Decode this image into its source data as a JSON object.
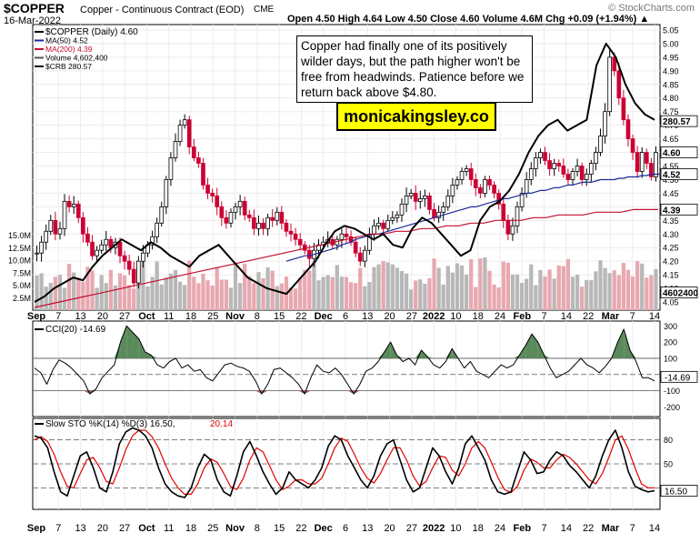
{
  "header": {
    "ticker": "$COPPER",
    "contract": "Copper - Continuous Contract (EOD)",
    "exchange": "CME",
    "date": "16-Mar-2022",
    "ohlc": "Open 4.50  High 4.64  Low 4.50  Close 4.60  Volume 4.6M  Chg +0.09 (+1.94%) ▲",
    "watermark": "© StockCharts.com"
  },
  "legend": {
    "main": "$COPPER (Daily) 4.60",
    "ma50": "MA(50) 4.52",
    "ma200": "MA(200) 4.39",
    "volume": "Volume 4,602,400",
    "crb": "$CRB 280.57"
  },
  "annotation": {
    "text": "Copper had finally one of its positively wilder days, but the path higher won't be free from headwinds. Patience before we return back above $4.80.",
    "site": "monicakingsley.co"
  },
  "colors": {
    "up": "#000000",
    "down": "#cc0033",
    "ma50": "#1a2a9a",
    "ma200": "#c01030",
    "crb": "#000000",
    "vol_up": "#b8b8b8",
    "vol_down": "#e8a8b0",
    "cci_up": "#5a8a5a",
    "cci_down": "#a06060",
    "sto_k": "#000000",
    "sto_d": "#e00000"
  },
  "chart_data": [
    {
      "type": "candlestick",
      "title": "$COPPER (Daily)",
      "x_labels": [
        "Sep",
        "7",
        "13",
        "20",
        "27",
        "Oct",
        "11",
        "18",
        "25",
        "Nov",
        "8",
        "15",
        "22",
        "Dec",
        "6",
        "13",
        "20",
        "27",
        "2022",
        "10",
        "18",
        "24",
        "Feb",
        "7",
        "14",
        "22",
        "Mar",
        "7",
        "14"
      ],
      "y_ticks": [
        4.05,
        4.1,
        4.15,
        4.2,
        4.25,
        4.3,
        4.35,
        4.4,
        4.45,
        4.5,
        4.55,
        4.6,
        4.65,
        4.7,
        4.75,
        4.8,
        4.85,
        4.9,
        4.95,
        5.0,
        5.05
      ],
      "ylim": [
        4.02,
        5.07
      ],
      "volume_ticks": [
        "2.5M",
        "5.0M",
        "7.5M",
        "10.0M",
        "12.5M",
        "15.0M"
      ],
      "volume_max": 20,
      "price_tags": [
        {
          "label": "280.57",
          "value": 4.715
        },
        {
          "label": "4.60",
          "value": 4.6
        },
        {
          "label": "4.52",
          "value": 4.52
        },
        {
          "label": "4.39",
          "value": 4.39
        },
        {
          "label": "4602400",
          "value": 4.085
        }
      ],
      "closes": [
        4.23,
        4.27,
        4.31,
        4.35,
        4.3,
        4.32,
        4.42,
        4.4,
        4.41,
        4.36,
        4.3,
        4.27,
        4.22,
        4.24,
        4.26,
        4.28,
        4.25,
        4.27,
        4.22,
        4.2,
        4.17,
        4.12,
        4.2,
        4.23,
        4.26,
        4.29,
        4.34,
        4.4,
        4.5,
        4.58,
        4.64,
        4.7,
        4.72,
        4.62,
        4.58,
        4.56,
        4.48,
        4.45,
        4.44,
        4.4,
        4.36,
        4.34,
        4.38,
        4.4,
        4.42,
        4.37,
        4.36,
        4.32,
        4.34,
        4.32,
        4.36,
        4.35,
        4.38,
        4.34,
        4.31,
        4.3,
        4.28,
        4.26,
        4.24,
        4.21,
        4.24,
        4.26,
        4.27,
        4.28,
        4.26,
        4.28,
        4.3,
        4.29,
        4.27,
        4.23,
        4.2,
        4.24,
        4.3,
        4.33,
        4.34,
        4.32,
        4.35,
        4.36,
        4.37,
        4.41,
        4.44,
        4.45,
        4.42,
        4.43,
        4.44,
        4.39,
        4.36,
        4.38,
        4.4,
        4.44,
        4.48,
        4.5,
        4.53,
        4.54,
        4.5,
        4.47,
        4.45,
        4.5,
        4.48,
        4.45,
        4.41,
        4.35,
        4.3,
        4.33,
        4.4,
        4.45,
        4.5,
        4.54,
        4.58,
        4.6,
        4.57,
        4.54,
        4.56,
        4.55,
        4.52,
        4.5,
        4.53,
        4.55,
        4.5,
        4.52,
        4.56,
        4.6,
        4.66,
        4.75,
        4.95,
        4.9,
        4.8,
        4.72,
        4.65,
        4.6,
        4.53,
        4.6,
        4.56,
        4.51,
        4.6
      ],
      "ma50": [
        4.2,
        4.205,
        4.21,
        4.215,
        4.22,
        4.22,
        4.225,
        4.23,
        4.235,
        4.24,
        4.245,
        4.25,
        4.26,
        4.265,
        4.27,
        4.28,
        4.285,
        4.29,
        4.295,
        4.3,
        4.3,
        4.305,
        4.31,
        4.315,
        4.32,
        4.325,
        4.33,
        4.335,
        4.34,
        4.345,
        4.35,
        4.355,
        4.36,
        4.365,
        4.37,
        4.375,
        4.38,
        4.385,
        4.39,
        4.395,
        4.4,
        4.4,
        4.405,
        4.41,
        4.415,
        4.42,
        4.425,
        4.43,
        4.43,
        4.435,
        4.44,
        4.445,
        4.45,
        4.45,
        4.455,
        4.46,
        4.46,
        4.465,
        4.47,
        4.47,
        4.475,
        4.48,
        4.48,
        4.485,
        4.49,
        4.49,
        4.49,
        4.495,
        4.5,
        4.5,
        4.5,
        4.5,
        4.505,
        4.505,
        4.51,
        4.51,
        4.51,
        4.515,
        4.515,
        4.52,
        4.52,
        4.52
      ],
      "ma50_start": 54,
      "ma200": [
        4.03,
        4.04,
        4.05,
        4.06,
        4.07,
        4.08,
        4.09,
        4.1,
        4.11,
        4.12,
        4.13,
        4.14,
        4.15,
        4.16,
        4.17,
        4.18,
        4.19,
        4.2,
        4.21,
        4.22,
        4.23,
        4.24,
        4.25,
        4.26,
        4.27,
        4.28,
        4.29,
        4.3,
        4.3,
        4.31,
        4.31,
        4.32,
        4.32,
        4.33,
        4.33,
        4.34,
        4.34,
        4.35,
        4.35,
        4.35,
        4.36,
        4.36,
        4.37,
        4.37,
        4.37,
        4.38,
        4.38,
        4.38,
        4.39,
        4.39,
        4.39
      ],
      "crb_closes": [
        4.05,
        4.07,
        4.1,
        4.12,
        4.14,
        4.13,
        4.18,
        4.22,
        4.25,
        4.28,
        4.26,
        4.24,
        4.27,
        4.25,
        4.22,
        4.2,
        4.18,
        4.22,
        4.24,
        4.26,
        4.22,
        4.18,
        4.14,
        4.12,
        4.1,
        4.09,
        4.08,
        4.12,
        4.16,
        4.2,
        4.26,
        4.31,
        4.33,
        4.32,
        4.3,
        4.28,
        4.3,
        4.26,
        4.25,
        4.32,
        4.36,
        4.34,
        4.3,
        4.26,
        4.22,
        4.24,
        4.35,
        4.4,
        4.42,
        4.46,
        4.52,
        4.6,
        4.66,
        4.7,
        4.72,
        4.68,
        4.7,
        4.72,
        4.92,
        5.0,
        4.95,
        4.85,
        4.78,
        4.74,
        4.72
      ]
    },
    {
      "type": "line",
      "title": "CCI(20) -14.69",
      "y_ticks": [
        300,
        200,
        100,
        0,
        -100,
        -200
      ],
      "ylim": [
        -260,
        330
      ],
      "current": "-14.69",
      "values": [
        40,
        10,
        -60,
        30,
        90,
        70,
        40,
        0,
        -40,
        -120,
        -90,
        -20,
        20,
        60,
        200,
        300,
        260,
        220,
        140,
        120,
        60,
        40,
        80,
        100,
        40,
        60,
        20,
        30,
        -20,
        -40,
        10,
        60,
        70,
        50,
        40,
        20,
        -40,
        -120,
        -60,
        30,
        40,
        10,
        -20,
        -60,
        -120,
        -20,
        60,
        20,
        10,
        40,
        0,
        -60,
        -120,
        -60,
        20,
        40,
        80,
        140,
        200,
        120,
        80,
        100,
        60,
        150,
        110,
        60,
        40,
        80,
        160,
        100,
        40,
        80,
        20,
        0,
        -20,
        20,
        60,
        40,
        60,
        120,
        180,
        250,
        200,
        120,
        40,
        -20,
        0,
        20,
        60,
        100,
        60,
        40,
        10,
        50,
        100,
        200,
        280,
        150,
        80,
        -20,
        -20,
        -40
      ]
    },
    {
      "type": "line",
      "title": "Slow STO %K(14) %D(3)",
      "title_k": "Slow STO %K(14) %D(3) 16.50,",
      "d_label": "20.14",
      "y_ticks": [
        80,
        50,
        20
      ],
      "ylim": [
        0,
        100
      ],
      "current": "16.50",
      "k": [
        85,
        82,
        70,
        40,
        15,
        10,
        35,
        60,
        65,
        45,
        20,
        15,
        40,
        75,
        90,
        95,
        92,
        85,
        70,
        45,
        25,
        15,
        10,
        8,
        20,
        45,
        62,
        55,
        30,
        15,
        10,
        35,
        65,
        78,
        60,
        40,
        25,
        12,
        20,
        40,
        30,
        25,
        20,
        30,
        45,
        72,
        85,
        80,
        60,
        45,
        30,
        20,
        35,
        60,
        75,
        80,
        55,
        30,
        15,
        20,
        45,
        70,
        60,
        40,
        25,
        45,
        75,
        85,
        70,
        55,
        30,
        15,
        12,
        15,
        40,
        65,
        55,
        38,
        40,
        55,
        65,
        60,
        48,
        40,
        30,
        20,
        35,
        60,
        80,
        92,
        70,
        40,
        22,
        18,
        15,
        16.5
      ],
      "d": [
        80,
        84,
        78,
        62,
        40,
        22,
        20,
        38,
        55,
        58,
        45,
        28,
        25,
        45,
        68,
        85,
        92,
        92,
        84,
        70,
        50,
        32,
        20,
        12,
        12,
        25,
        45,
        56,
        52,
        38,
        22,
        18,
        32,
        55,
        70,
        65,
        48,
        30,
        18,
        22,
        30,
        30,
        25,
        25,
        32,
        50,
        70,
        82,
        78,
        62,
        45,
        32,
        26,
        38,
        55,
        70,
        70,
        55,
        35,
        22,
        28,
        45,
        60,
        58,
        42,
        35,
        50,
        70,
        78,
        70,
        52,
        33,
        18,
        14,
        22,
        42,
        56,
        52,
        45,
        45,
        55,
        62,
        58,
        50,
        40,
        30,
        25,
        38,
        58,
        80,
        85,
        68,
        45,
        25,
        20,
        20.14
      ]
    }
  ]
}
